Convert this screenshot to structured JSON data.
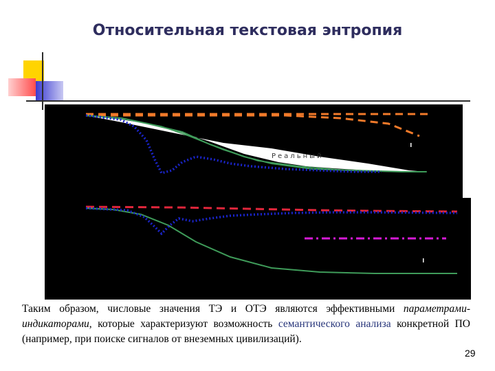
{
  "slide": {
    "title": "Относительная текстовая энтропия",
    "page_number": "29"
  },
  "chart": {
    "inline_label": "Реальный"
  },
  "body": {
    "text_1": "Таким образом, числовые значения ТЭ и ОТЭ являются эффективными ",
    "text_2_italic": "параметрами-индикаторами",
    "text_3": ", которые характеризуют возможность ",
    "link_1": "семантического анализа",
    "text_4": " конкретной ПО (например, при поиске сигналов от внеземных цивилизаций)."
  },
  "colors": {
    "title": "#2e2d5e",
    "accent_yellow": "#ffd400",
    "accent_red": "#ff4d4d",
    "accent_blue": "#3b3bd1",
    "link": "#27357a",
    "orange_dash": "#f27a2a",
    "red_dash": "#e0263b",
    "blue_dot": "#1a24c8",
    "green_line": "#3f9c5a",
    "magenta_dashdot": "#d61ad6"
  }
}
